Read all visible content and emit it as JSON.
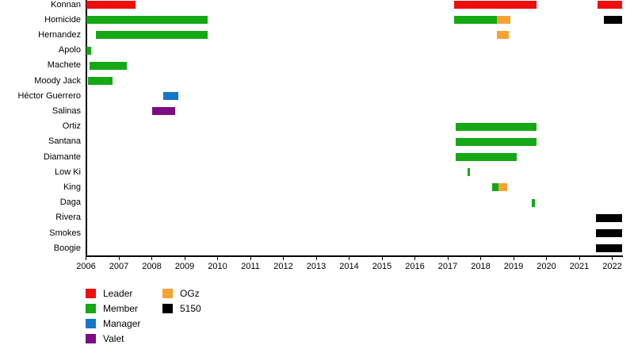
{
  "chart_data": {
    "type": "bar",
    "subtype": "horizontal-timeline-gantt",
    "title": "",
    "xlabel": "",
    "ylabel": "",
    "xlim": [
      2006,
      2022.3
    ],
    "x_ticks": [
      2006,
      2007,
      2008,
      2009,
      2010,
      2011,
      2012,
      2013,
      2014,
      2015,
      2016,
      2017,
      2018,
      2019,
      2020,
      2021,
      2022
    ],
    "grid": false,
    "background_color": "#ffffff",
    "axis_color": "#000000",
    "legend_position": "bottom-left",
    "legend": [
      {
        "label": "Leader",
        "color": "#ee0e0e",
        "column": 0
      },
      {
        "label": "Member",
        "color": "#14a814",
        "column": 0
      },
      {
        "label": "Manager",
        "color": "#1478c8",
        "column": 0
      },
      {
        "label": "Valet",
        "color": "#7d0c82",
        "column": 0
      },
      {
        "label": "OGz",
        "color": "#f9a232",
        "column": 1
      },
      {
        "label": "5150",
        "color": "#000000",
        "column": 1
      }
    ],
    "rows": [
      {
        "label": "Konnan",
        "segments": [
          {
            "role": "Leader",
            "start": 2006.0,
            "end": 2007.5
          },
          {
            "role": "Leader",
            "start": 2017.2,
            "end": 2019.7
          },
          {
            "role": "Leader",
            "start": 2021.55,
            "end": 2022.3
          }
        ]
      },
      {
        "label": "Homicide",
        "segments": [
          {
            "role": "Member",
            "start": 2006.0,
            "end": 2009.7
          },
          {
            "role": "Member",
            "start": 2017.2,
            "end": 2018.5
          },
          {
            "role": "OGz",
            "start": 2018.5,
            "end": 2018.9
          },
          {
            "role": "5150",
            "start": 2021.75,
            "end": 2022.3
          }
        ]
      },
      {
        "label": "Hernandez",
        "segments": [
          {
            "role": "Member",
            "start": 2006.3,
            "end": 2009.7
          },
          {
            "role": "OGz",
            "start": 2018.5,
            "end": 2018.85
          }
        ]
      },
      {
        "label": "Apolo",
        "segments": [
          {
            "role": "Member",
            "start": 2006.0,
            "end": 2006.15
          }
        ]
      },
      {
        "label": "Machete",
        "segments": [
          {
            "role": "Member",
            "start": 2006.1,
            "end": 2007.25
          }
        ]
      },
      {
        "label": "Moody Jack",
        "segments": [
          {
            "role": "Member",
            "start": 2006.05,
            "end": 2006.8
          }
        ]
      },
      {
        "label": "Héctor Guerrero",
        "segments": [
          {
            "role": "Manager",
            "start": 2008.35,
            "end": 2008.8
          }
        ]
      },
      {
        "label": "Salinas",
        "segments": [
          {
            "role": "Valet",
            "start": 2008.0,
            "end": 2008.7
          }
        ]
      },
      {
        "label": "Ortiz",
        "segments": [
          {
            "role": "Member",
            "start": 2017.25,
            "end": 2019.7
          }
        ]
      },
      {
        "label": "Santana",
        "segments": [
          {
            "role": "Member",
            "start": 2017.25,
            "end": 2019.7
          }
        ]
      },
      {
        "label": "Diamante",
        "segments": [
          {
            "role": "Member",
            "start": 2017.25,
            "end": 2019.1
          }
        ]
      },
      {
        "label": "Low Ki",
        "segments": [
          {
            "role": "Member",
            "start": 2017.6,
            "end": 2017.68
          }
        ]
      },
      {
        "label": "King",
        "segments": [
          {
            "role": "Member",
            "start": 2018.35,
            "end": 2018.55
          },
          {
            "role": "OGz",
            "start": 2018.55,
            "end": 2018.8
          }
        ]
      },
      {
        "label": "Daga",
        "segments": [
          {
            "role": "Member",
            "start": 2019.55,
            "end": 2019.65
          }
        ]
      },
      {
        "label": "Rivera",
        "segments": [
          {
            "role": "5150",
            "start": 2021.5,
            "end": 2022.3
          }
        ]
      },
      {
        "label": "Smokes",
        "segments": [
          {
            "role": "5150",
            "start": 2021.5,
            "end": 2022.3
          }
        ]
      },
      {
        "label": "Boogie",
        "segments": [
          {
            "role": "5150",
            "start": 2021.5,
            "end": 2022.3
          }
        ]
      }
    ]
  }
}
